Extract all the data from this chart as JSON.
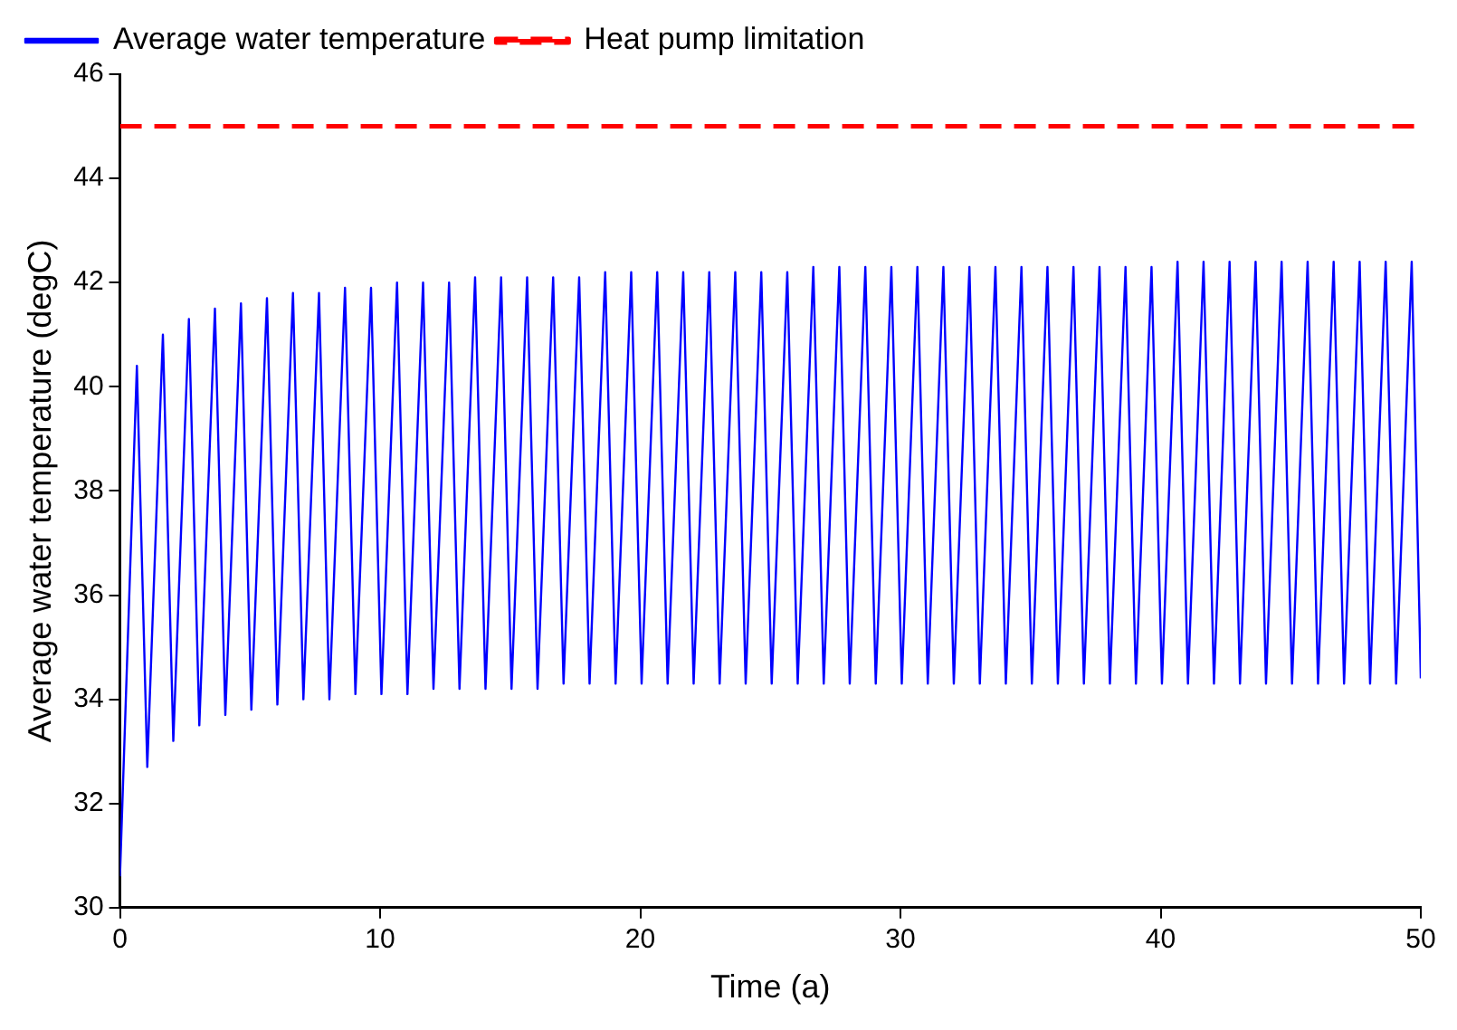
{
  "chart_data": {
    "type": "line",
    "xlabel": "Time (a)",
    "ylabel": "Average water temperature (degC)",
    "xlim": [
      0,
      50
    ],
    "xticks": [
      0,
      10,
      20,
      30,
      40,
      50
    ],
    "ylim": [
      30,
      46
    ],
    "yticks": [
      30,
      32,
      34,
      36,
      38,
      40,
      42,
      44,
      46
    ],
    "grid": false,
    "legend": "top left",
    "marker": "none",
    "series": [
      {
        "name": "Average water temperature",
        "color": "#0000ff",
        "line_style": "solid",
        "x": [
          0,
          0.65,
          1.05,
          1.65,
          2.05,
          2.65,
          3.05,
          3.65,
          4.05,
          4.65,
          5.05,
          5.65,
          6.05,
          6.65,
          7.05,
          7.65,
          8.05,
          8.65,
          9.05,
          9.65,
          10.05,
          10.65,
          11.05,
          11.65,
          12.05,
          12.65,
          13.05,
          13.65,
          14.05,
          14.65,
          15.05,
          15.65,
          16.05,
          16.65,
          17.05,
          17.65,
          18.05,
          18.65,
          19.05,
          19.65,
          20.05,
          20.65,
          21.05,
          21.65,
          22.05,
          22.65,
          23.05,
          23.65,
          24.05,
          24.65,
          25.05,
          25.65,
          26.05,
          26.65,
          27.05,
          27.65,
          28.05,
          28.65,
          29.05,
          29.65,
          30.05,
          30.65,
          31.05,
          31.65,
          32.05,
          32.65,
          33.05,
          33.65,
          34.05,
          34.65,
          35.05,
          35.65,
          36.05,
          36.65,
          37.05,
          37.65,
          38.05,
          38.65,
          39.05,
          39.65,
          40.05,
          40.65,
          41.05,
          41.65,
          42.05,
          42.65,
          43.05,
          43.65,
          44.05,
          44.65,
          45.05,
          45.65,
          46.05,
          46.65,
          47.05,
          47.65,
          48.05,
          48.65,
          49.05,
          49.65,
          50
        ],
        "values": [
          30.6,
          40.4,
          32.7,
          41.0,
          33.2,
          41.3,
          33.5,
          41.5,
          33.7,
          41.6,
          33.8,
          41.7,
          33.9,
          41.8,
          34.0,
          41.8,
          34.0,
          41.9,
          34.1,
          41.9,
          34.1,
          42.0,
          34.1,
          42.0,
          34.2,
          42.0,
          34.2,
          42.1,
          34.2,
          42.1,
          34.2,
          42.1,
          34.2,
          42.1,
          34.3,
          42.1,
          34.3,
          42.2,
          34.3,
          42.2,
          34.3,
          42.2,
          34.3,
          42.2,
          34.3,
          42.2,
          34.3,
          42.2,
          34.3,
          42.2,
          34.3,
          42.2,
          34.3,
          42.3,
          34.3,
          42.3,
          34.3,
          42.3,
          34.3,
          42.3,
          34.3,
          42.3,
          34.3,
          42.3,
          34.3,
          42.3,
          34.3,
          42.3,
          34.3,
          42.3,
          34.3,
          42.3,
          34.3,
          42.3,
          34.3,
          42.3,
          34.3,
          42.3,
          34.3,
          42.3,
          34.3,
          42.4,
          34.3,
          42.4,
          34.3,
          42.4,
          34.3,
          42.4,
          34.3,
          42.4,
          34.3,
          42.4,
          34.3,
          42.4,
          34.3,
          42.4,
          34.3,
          42.4,
          34.3,
          42.4,
          34.4
        ]
      },
      {
        "name": "Heat pump limitation",
        "color": "#ff0000",
        "line_style": "dashed",
        "x": [
          0,
          50
        ],
        "values": [
          45,
          45
        ]
      }
    ]
  }
}
